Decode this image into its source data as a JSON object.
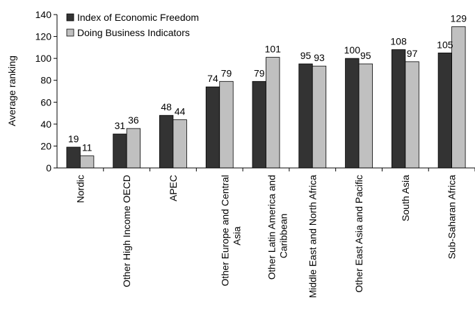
{
  "colors": {
    "series1": "#333333",
    "series2": "#c0c0c0",
    "axis": "#000000"
  },
  "chart_data": {
    "type": "bar",
    "ylabel": "Average ranking",
    "ylim": [
      0,
      140
    ],
    "yticks": [
      0,
      20,
      40,
      60,
      80,
      100,
      120,
      140
    ],
    "legend_position": "top-left",
    "grid": false,
    "categories": [
      [
        "Nordic"
      ],
      [
        "Other High Income OECD"
      ],
      [
        "APEC"
      ],
      [
        "Other Europe and Central",
        "Asia"
      ],
      [
        "Other Latin America and",
        "Caribbean"
      ],
      [
        "Middle East and North Africa"
      ],
      [
        "Other East Asia and Pacific"
      ],
      [
        "South Asia"
      ],
      [
        "Sub-Saharan Africa"
      ]
    ],
    "series": [
      {
        "name": "Index of Economic Freedom",
        "values": [
          19,
          31,
          48,
          74,
          79,
          95,
          100,
          108,
          105
        ]
      },
      {
        "name": "Doing Business Indicators",
        "values": [
          11,
          36,
          44,
          79,
          101,
          93,
          95,
          97,
          129
        ]
      }
    ]
  }
}
